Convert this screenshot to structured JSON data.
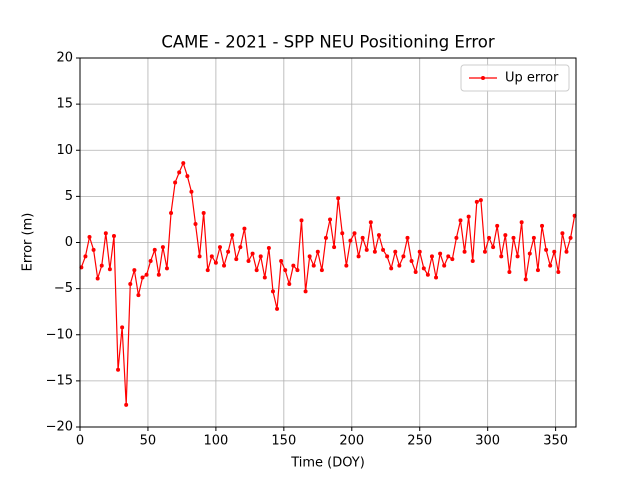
{
  "chart_data": {
    "type": "line",
    "title": "CAME - 2021 - SPP NEU Positioning Error",
    "x_label": "Time (DOY)",
    "y_label": "Error (m)",
    "x": [
      1,
      4,
      7,
      10,
      13,
      16,
      19,
      22,
      25,
      28,
      31,
      34,
      37,
      40,
      43,
      46,
      49,
      52,
      55,
      58,
      61,
      64,
      67,
      70,
      73,
      76,
      79,
      82,
      85,
      88,
      91,
      94,
      97,
      100,
      103,
      106,
      109,
      112,
      115,
      118,
      121,
      124,
      127,
      130,
      133,
      136,
      139,
      142,
      145,
      148,
      151,
      154,
      157,
      160,
      163,
      166,
      169,
      172,
      175,
      178,
      181,
      184,
      187,
      190,
      193,
      196,
      199,
      202,
      205,
      208,
      211,
      214,
      217,
      220,
      223,
      226,
      229,
      232,
      235,
      238,
      241,
      244,
      247,
      250,
      253,
      256,
      259,
      262,
      265,
      268,
      271,
      274,
      277,
      280,
      283,
      286,
      289,
      292,
      295,
      298,
      301,
      304,
      307,
      310,
      313,
      316,
      319,
      322,
      325,
      328,
      331,
      334,
      337,
      340,
      343,
      346,
      349,
      352,
      355,
      358,
      361,
      364
    ],
    "series": [
      {
        "name": "Up error",
        "color": "#ff0000",
        "values": [
          -2.7,
          -1.5,
          0.6,
          -0.8,
          -3.9,
          -2.5,
          1.0,
          -2.9,
          0.7,
          -13.8,
          -9.2,
          -17.6,
          -4.5,
          -3.0,
          -5.7,
          -3.8,
          -3.5,
          -2.0,
          -0.8,
          -3.5,
          -0.5,
          -2.8,
          3.2,
          6.5,
          7.6,
          8.6,
          7.2,
          5.5,
          2.0,
          -1.5,
          3.2,
          -3.0,
          -1.5,
          -2.2,
          -0.5,
          -2.5,
          -1.0,
          0.8,
          -1.8,
          -0.5,
          1.5,
          -2.0,
          -1.2,
          -3.0,
          -1.5,
          -3.8,
          -0.6,
          -5.3,
          -7.2,
          -2.0,
          -3.0,
          -4.5,
          -2.5,
          -3.0,
          2.4,
          -5.3,
          -1.5,
          -2.5,
          -1.0,
          -3.0,
          0.5,
          2.5,
          -0.5,
          4.8,
          1.0,
          -2.5,
          0.2,
          1.0,
          -1.5,
          0.5,
          -0.8,
          2.2,
          -1.0,
          0.8,
          -0.8,
          -1.5,
          -2.8,
          -1.0,
          -2.5,
          -1.5,
          0.5,
          -2.0,
          -3.2,
          -1.0,
          -2.8,
          -3.5,
          -1.5,
          -3.8,
          -1.2,
          -2.5,
          -1.5,
          -1.8,
          0.5,
          2.4,
          -1.0,
          2.8,
          -2.0,
          4.4,
          4.6,
          -1.0,
          0.5,
          -0.5,
          1.8,
          -1.5,
          0.8,
          -3.2,
          0.5,
          -1.5,
          2.2,
          -4.0,
          -1.2,
          0.5,
          -3.0,
          1.8,
          -0.8,
          -2.5,
          -1.0,
          -3.2,
          1.0,
          -1.0,
          0.5,
          2.9
        ]
      }
    ],
    "xlim": [
      0,
      365
    ],
    "xticks": [
      0,
      50,
      100,
      150,
      200,
      250,
      300,
      350
    ],
    "ylim": [
      -20,
      20
    ],
    "yticks": [
      {
        "value": -20,
        "label": "−20"
      },
      {
        "value": -15,
        "label": "−15"
      },
      {
        "value": -10,
        "label": "−10"
      },
      {
        "value": -5,
        "label": "−5"
      },
      0,
      5,
      10,
      15,
      20
    ],
    "grid": true,
    "legend": "upper right"
  }
}
